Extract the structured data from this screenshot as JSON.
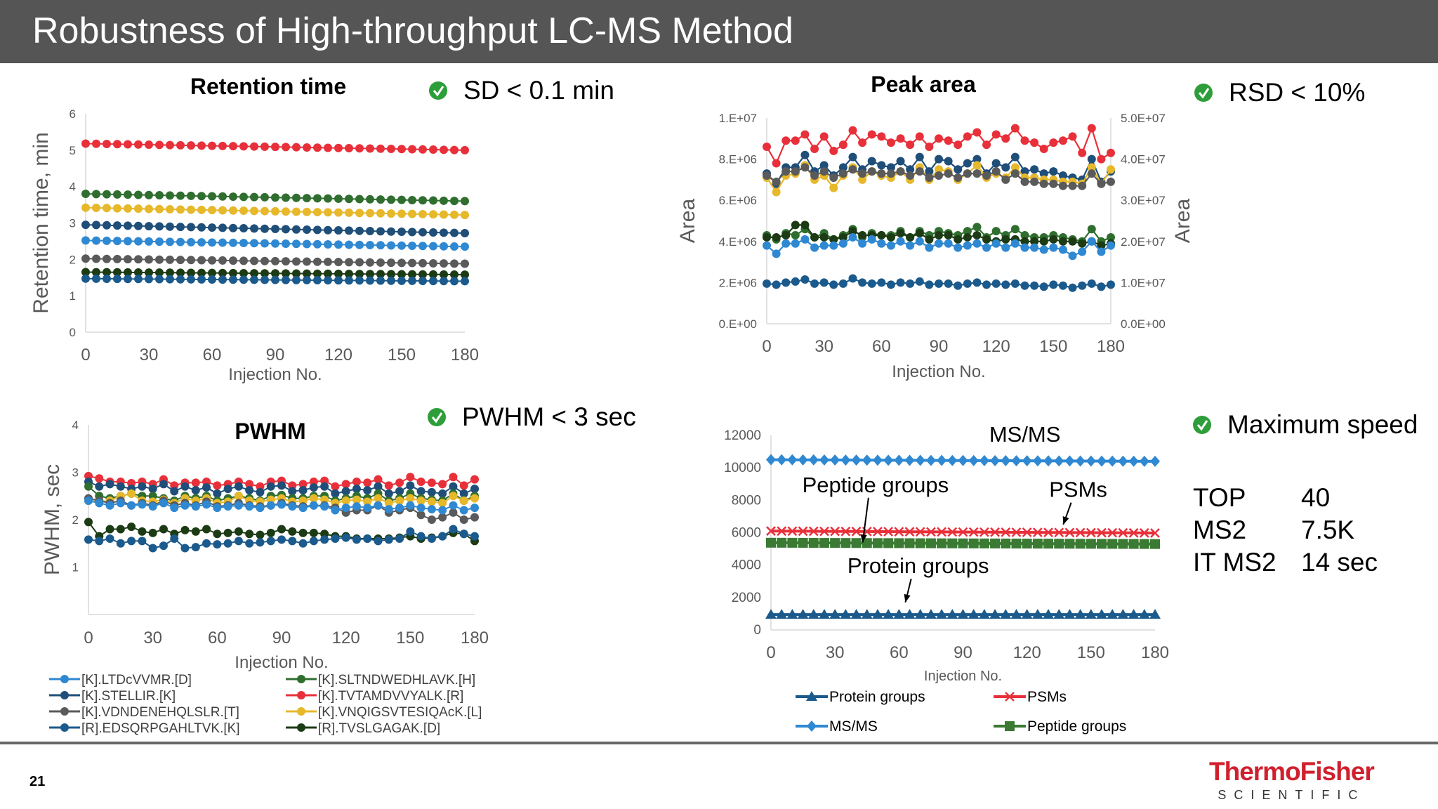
{
  "title": "Robustness of High-throughput LC-MS Method",
  "page_number": "21",
  "logo": {
    "line1": "ThermoFisher",
    "line2": "SCIENTIFIC"
  },
  "check_color": "#2e9e3a",
  "notes": [
    {
      "text": "SD < 0.1 min"
    },
    {
      "text": "RSD < 10%"
    },
    {
      "text": "PWHM < 3 sec"
    },
    {
      "text": "Maximum speed"
    }
  ],
  "speed_table": [
    [
      "TOP",
      "40"
    ],
    [
      "MS2",
      "7.5K"
    ],
    [
      "IT MS2",
      "14 sec"
    ]
  ],
  "peptide_legend": [
    {
      "label": "[K].LTDcVVMR.[D]",
      "color": "#2f88d2"
    },
    {
      "label": "[K].STELLIR.[K]",
      "color": "#1f4e79"
    },
    {
      "label": "[K].VDNDENEHQLSLR.[T]",
      "color": "#5a5a5a"
    },
    {
      "label": "[R].EDSQRPGAHLTVK.[K]",
      "color": "#1b5a8c"
    },
    {
      "label": "[K].SLTNDWEDHLAVK.[H]",
      "color": "#2f6e2f"
    },
    {
      "label": "[K].TVTAMDVVYALK.[R]",
      "color": "#e8303a"
    },
    {
      "label": "[K].VNQIGSVTESIQAcK.[L]",
      "color": "#e6b82a"
    },
    {
      "label": "[R].TVSLGAGAK.[D]",
      "color": "#1c3b14"
    }
  ],
  "chart_data": [
    {
      "type": "line",
      "title": "Retention time",
      "xlabel": "Injection No.",
      "ylabel": "Retention time, min",
      "xlim": [
        0,
        180
      ],
      "ylim": [
        0,
        6
      ],
      "xticks": [
        0,
        30,
        60,
        90,
        120,
        150,
        180
      ],
      "yticks": [
        0,
        1,
        2,
        3,
        4,
        5,
        6
      ],
      "series": [
        {
          "name": "[K].TVTAMDVVYALK.[R]",
          "color": "#e8303a",
          "start": 5.18,
          "end": 5.0,
          "noise": 0.0
        },
        {
          "name": "[K].SLTNDWEDHLAVK.[H]",
          "color": "#2f6e2f",
          "start": 3.8,
          "end": 3.6,
          "noise": 0.0
        },
        {
          "name": "[K].VNQIGSVTESIQAcK.[L]",
          "color": "#e6b82a",
          "start": 3.42,
          "end": 3.22,
          "noise": 0.0
        },
        {
          "name": "[K].STELLIR.[K]",
          "color": "#1f4e79",
          "start": 2.95,
          "end": 2.72,
          "noise": 0.0
        },
        {
          "name": "[K].LTDcVVMR.[D]",
          "color": "#2f88d2",
          "start": 2.52,
          "end": 2.35,
          "noise": 0.0
        },
        {
          "name": "[K].VDNDENEHQLSLR.[T]",
          "color": "#5a5a5a",
          "start": 2.02,
          "end": 1.88,
          "noise": 0.0
        },
        {
          "name": "[R].TVSLGAGAK.[D]",
          "color": "#1c3b14",
          "start": 1.65,
          "end": 1.58,
          "noise": 0.0
        },
        {
          "name": "[R].EDSQRPGAHLTVK.[K]",
          "color": "#1b5a8c",
          "start": 1.47,
          "end": 1.4,
          "noise": 0.0
        }
      ]
    },
    {
      "type": "line",
      "title": "Peak area",
      "xlabel": "Injection No.",
      "ylabel": "Area",
      "ylabel_right": "Area",
      "xlim": [
        0,
        180
      ],
      "ylim": [
        0,
        10000000
      ],
      "ylim_right": [
        0,
        50000000
      ],
      "xticks": [
        0,
        30,
        60,
        90,
        120,
        150,
        180
      ],
      "ytick_labels": [
        "0.E+00",
        "2.E+06",
        "4.E+06",
        "6.E+06",
        "8.E+06",
        "1.E+07"
      ],
      "ytick_labels_right": [
        "0.0E+00",
        "1.0E+07",
        "2.0E+07",
        "3.0E+07",
        "4.0E+07",
        "5.0E+07"
      ],
      "series": [
        {
          "name": "[K].TVTAMDVVYALK.[R]",
          "color": "#e8303a",
          "values": [
            8.6,
            7.8,
            8.9,
            8.9,
            9.2,
            8.5,
            9.1,
            8.4,
            8.7,
            9.4,
            8.8,
            9.2,
            9.1,
            8.8,
            9.0,
            8.7,
            9.1,
            8.6,
            9.0,
            8.9,
            8.7,
            9.1,
            9.3,
            8.7,
            9.2,
            9.0,
            9.5,
            8.9,
            8.8,
            8.5,
            8.8,
            8.9,
            9.1,
            8.3,
            9.5,
            8.0,
            8.3
          ]
        },
        {
          "name": "[K].STELLIR.[K]",
          "color": "#1f4e79",
          "values": [
            7.3,
            6.8,
            7.6,
            7.6,
            8.2,
            7.4,
            7.7,
            7.2,
            7.6,
            8.1,
            7.5,
            7.9,
            7.7,
            7.6,
            7.9,
            7.5,
            8.1,
            7.4,
            8.0,
            7.9,
            7.5,
            7.8,
            8.0,
            7.3,
            7.8,
            7.6,
            8.1,
            7.4,
            7.5,
            7.3,
            7.4,
            7.2,
            7.1,
            7.0,
            8.0,
            6.9,
            7.4
          ]
        },
        {
          "name": "[K].VNQIGSVTESIQAcK.[L]",
          "color": "#e6b82a",
          "values": [
            7.1,
            6.4,
            7.2,
            7.3,
            7.7,
            7.0,
            7.2,
            6.6,
            7.2,
            7.6,
            7.0,
            7.4,
            7.2,
            7.1,
            7.4,
            7.0,
            7.6,
            7.0,
            7.5,
            7.4,
            7.0,
            7.3,
            7.7,
            7.1,
            7.3,
            7.1,
            7.6,
            7.1,
            7.1,
            7.0,
            7.0,
            6.9,
            6.9,
            6.8,
            7.6,
            6.8,
            7.5
          ]
        },
        {
          "name": "[K].VDNDENEHQLSLR.[T]",
          "color": "#5a5a5a",
          "values": [
            7.2,
            6.9,
            7.4,
            7.4,
            7.6,
            7.2,
            7.4,
            7.1,
            7.3,
            7.5,
            7.3,
            7.4,
            7.3,
            7.3,
            7.4,
            7.2,
            7.4,
            7.1,
            7.2,
            7.3,
            7.1,
            7.3,
            7.3,
            7.2,
            7.4,
            7.0,
            7.3,
            6.9,
            6.9,
            6.8,
            6.8,
            6.7,
            6.7,
            6.7,
            7.3,
            6.8,
            6.9
          ]
        },
        {
          "name": "[K].SLTNDWEDHLAVK.[H]",
          "color": "#2f6e2f",
          "values": [
            4.3,
            4.1,
            4.4,
            4.3,
            4.6,
            4.2,
            4.4,
            4.1,
            4.3,
            4.6,
            4.2,
            4.4,
            4.3,
            4.3,
            4.5,
            4.2,
            4.5,
            4.3,
            4.5,
            4.4,
            4.3,
            4.5,
            4.7,
            4.2,
            4.5,
            4.3,
            4.6,
            4.3,
            4.2,
            4.2,
            4.3,
            4.2,
            4.1,
            4.0,
            4.6,
            4.0,
            4.2
          ]
        },
        {
          "name": "[R].TVSLGAGAK.[D]",
          "color": "#1c3b14",
          "values": [
            4.2,
            4.2,
            4.3,
            4.8,
            4.8,
            4.2,
            4.2,
            4.1,
            4.2,
            4.5,
            4.3,
            4.3,
            4.3,
            4.2,
            4.4,
            4.2,
            4.4,
            4.1,
            4.3,
            4.3,
            4.1,
            4.2,
            4.3,
            4.1,
            4.0,
            4.1,
            4.1,
            4.0,
            4.0,
            4.0,
            4.1,
            4.0,
            4.0,
            3.9,
            4.0,
            3.8,
            3.9
          ]
        },
        {
          "name": "[K].LTDcVVMR.[D]",
          "color": "#2f88d2",
          "values": [
            3.8,
            3.4,
            3.9,
            3.9,
            4.1,
            3.7,
            3.8,
            3.8,
            3.9,
            4.2,
            3.9,
            4.1,
            3.9,
            3.8,
            4.0,
            3.8,
            4.0,
            3.7,
            3.9,
            3.9,
            3.7,
            3.8,
            3.9,
            3.7,
            3.9,
            3.7,
            3.9,
            3.7,
            3.7,
            3.6,
            3.7,
            3.6,
            3.3,
            3.5,
            4.0,
            3.5,
            3.8
          ]
        },
        {
          "name": "[R].EDSQRPGAHLTVK.[K]",
          "color": "#1b5a8c",
          "values": [
            1.95,
            1.9,
            2.0,
            2.05,
            2.15,
            1.95,
            2.0,
            1.9,
            1.95,
            2.2,
            2.0,
            1.95,
            2.0,
            1.9,
            2.0,
            1.95,
            2.05,
            1.9,
            1.95,
            1.95,
            1.85,
            1.95,
            2.0,
            1.9,
            1.95,
            1.9,
            1.95,
            1.85,
            1.85,
            1.8,
            1.9,
            1.85,
            1.75,
            1.85,
            1.95,
            1.8,
            1.9
          ]
        }
      ]
    },
    {
      "type": "line",
      "title": "PWHM",
      "xlabel": "Injection No.",
      "ylabel": "PWHM, sec",
      "xlim": [
        0,
        180
      ],
      "ylim": [
        0,
        4
      ],
      "xticks": [
        0,
        30,
        60,
        90,
        120,
        150,
        180
      ],
      "yticks": [
        1,
        2,
        3,
        4
      ],
      "series": [
        {
          "name": "[K].TVTAMDVVYALK.[R]",
          "color": "#e8303a",
          "values": [
            2.92,
            2.87,
            2.8,
            2.8,
            2.77,
            2.8,
            2.75,
            2.85,
            2.72,
            2.78,
            2.78,
            2.8,
            2.72,
            2.75,
            2.8,
            2.75,
            2.7,
            2.8,
            2.82,
            2.72,
            2.75,
            2.8,
            2.82,
            2.7,
            2.75,
            2.8,
            2.78,
            2.85,
            2.72,
            2.78,
            2.9,
            2.8,
            2.78,
            2.75,
            2.9,
            2.72,
            2.85
          ]
        },
        {
          "name": "[K].STELLIR.[K]",
          "color": "#1f4e79",
          "values": [
            2.8,
            2.7,
            2.75,
            2.7,
            2.65,
            2.7,
            2.65,
            2.75,
            2.6,
            2.7,
            2.62,
            2.68,
            2.55,
            2.65,
            2.7,
            2.62,
            2.58,
            2.7,
            2.72,
            2.6,
            2.62,
            2.68,
            2.7,
            2.55,
            2.6,
            2.65,
            2.62,
            2.7,
            2.55,
            2.6,
            2.72,
            2.6,
            2.58,
            2.55,
            2.7,
            2.55,
            2.65
          ]
        },
        {
          "name": "[K].SLTNDWEDHLAVK.[H]",
          "color": "#2f6e2f",
          "values": [
            2.7,
            2.5,
            2.45,
            2.5,
            2.55,
            2.5,
            2.5,
            2.45,
            2.4,
            2.5,
            2.45,
            2.5,
            2.4,
            2.45,
            2.5,
            2.45,
            2.4,
            2.5,
            2.52,
            2.45,
            2.45,
            2.5,
            2.5,
            2.4,
            2.45,
            2.5,
            2.45,
            2.55,
            2.4,
            2.45,
            2.55,
            2.45,
            2.42,
            2.4,
            2.55,
            2.4,
            2.5
          ]
        },
        {
          "name": "[K].VNQIGSVTESIQAcK.[L]",
          "color": "#e6b82a",
          "values": [
            2.4,
            2.38,
            2.4,
            2.5,
            2.55,
            2.4,
            2.38,
            2.42,
            2.35,
            2.45,
            2.4,
            2.45,
            2.35,
            2.38,
            2.5,
            2.4,
            2.38,
            2.42,
            2.45,
            2.38,
            2.4,
            2.45,
            2.42,
            2.35,
            2.4,
            2.42,
            2.38,
            2.45,
            2.35,
            2.4,
            2.45,
            2.4,
            2.38,
            2.35,
            2.5,
            2.4,
            2.45
          ]
        },
        {
          "name": "[K].VDNDENEHQLSLR.[T]",
          "color": "#5a5a5a",
          "values": [
            2.45,
            2.4,
            2.35,
            2.4,
            2.3,
            2.35,
            2.3,
            2.4,
            2.3,
            2.35,
            2.3,
            2.38,
            2.28,
            2.3,
            2.35,
            2.3,
            2.28,
            2.3,
            2.35,
            2.3,
            2.28,
            2.3,
            2.3,
            2.25,
            2.15,
            2.2,
            2.2,
            2.3,
            2.15,
            2.2,
            2.25,
            2.1,
            2.0,
            2.05,
            2.15,
            2.0,
            2.05
          ]
        },
        {
          "name": "[K].LTDcVVMR.[D]",
          "color": "#2f88d2",
          "values": [
            2.4,
            2.35,
            2.3,
            2.35,
            2.3,
            2.32,
            2.28,
            2.35,
            2.25,
            2.3,
            2.28,
            2.32,
            2.25,
            2.28,
            2.3,
            2.28,
            2.25,
            2.3,
            2.32,
            2.28,
            2.25,
            2.3,
            2.28,
            2.2,
            2.25,
            2.28,
            2.25,
            2.3,
            2.22,
            2.25,
            2.3,
            2.25,
            2.22,
            2.2,
            2.3,
            2.2,
            2.25
          ]
        },
        {
          "name": "[R].TVSLGAGAK.[D]",
          "color": "#1c3b14",
          "values": [
            1.95,
            1.65,
            1.8,
            1.8,
            1.85,
            1.75,
            1.72,
            1.8,
            1.7,
            1.78,
            1.75,
            1.8,
            1.7,
            1.72,
            1.75,
            1.7,
            1.68,
            1.72,
            1.8,
            1.75,
            1.72,
            1.72,
            1.7,
            1.65,
            1.65,
            1.6,
            1.6,
            1.6,
            1.6,
            1.62,
            1.65,
            1.6,
            1.62,
            1.65,
            1.72,
            1.7,
            1.55
          ]
        },
        {
          "name": "[R].EDSQRPGAHLTVK.[K]",
          "color": "#1b5a8c",
          "values": [
            1.58,
            1.55,
            1.6,
            1.5,
            1.55,
            1.55,
            1.4,
            1.45,
            1.6,
            1.4,
            1.42,
            1.5,
            1.48,
            1.5,
            1.55,
            1.5,
            1.52,
            1.55,
            1.58,
            1.55,
            1.5,
            1.55,
            1.58,
            1.6,
            1.62,
            1.58,
            1.6,
            1.55,
            1.58,
            1.6,
            1.75,
            1.65,
            1.6,
            1.65,
            1.8,
            1.7,
            1.65
          ]
        }
      ]
    },
    {
      "type": "line",
      "xlabel": "Injection No.",
      "xlim": [
        0,
        180
      ],
      "ylim": [
        0,
        12000
      ],
      "xticks": [
        0,
        30,
        60,
        90,
        120,
        150,
        180
      ],
      "yticks": [
        0,
        2000,
        4000,
        6000,
        8000,
        10000,
        12000
      ],
      "annotations": [
        {
          "text": "MS/MS",
          "x": 119,
          "y": 11600
        },
        {
          "text": "Peptide groups",
          "x": 49,
          "y": 8500,
          "arrow_to_x": 43,
          "arrow_to_y": 5400
        },
        {
          "text": "PSMs",
          "x": 144,
          "y": 8200,
          "arrow_to_x": 137,
          "arrow_to_y": 6500
        },
        {
          "text": "Protein groups",
          "x": 69,
          "y": 3500,
          "arrow_to_x": 63,
          "arrow_to_y": 1700
        }
      ],
      "series": [
        {
          "name": "MS/MS",
          "color": "#2f88d2",
          "marker": "diamond",
          "start": 10500,
          "end": 10400
        },
        {
          "name": "PSMs",
          "color": "#e8303a",
          "marker": "x",
          "start": 6100,
          "end": 5980
        },
        {
          "name": "Peptide groups",
          "color": "#3a7a33",
          "marker": "square",
          "start": 5380,
          "end": 5300
        },
        {
          "name": "Protein groups",
          "color": "#1b5a8c",
          "marker": "triangle",
          "start": 950,
          "end": 950
        }
      ]
    }
  ]
}
